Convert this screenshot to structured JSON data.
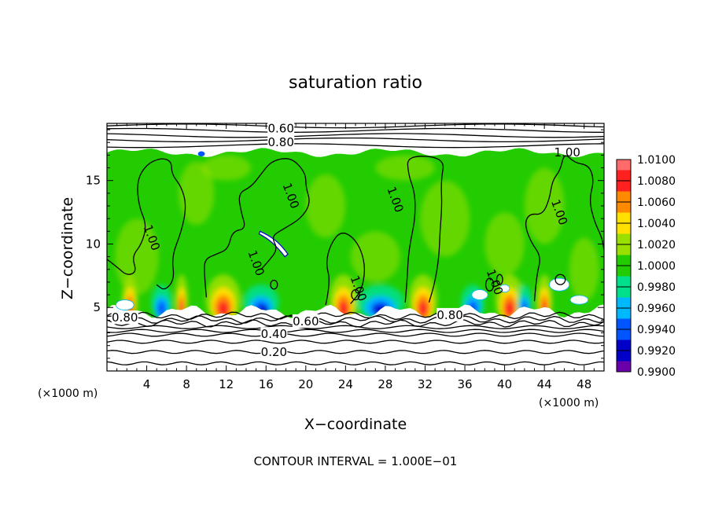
{
  "chart_data": {
    "type": "heatmap",
    "title": "saturation ratio",
    "xlabel": "X−coordinate",
    "ylabel": "Z−coordinate",
    "x_unit": "(×1000 m)",
    "x_unit_right": "(×1000 m)",
    "xlim": [
      0,
      50
    ],
    "ylim": [
      0,
      19.5
    ],
    "x_ticks": [
      4,
      8,
      12,
      16,
      20,
      24,
      28,
      32,
      36,
      40,
      44,
      48
    ],
    "y_ticks": [
      5,
      10,
      15
    ],
    "footer": "CONTOUR INTERVAL = 1.000E−01",
    "colorbar": {
      "placement": "right",
      "levels": [
        "1.0100",
        "1.0080",
        "1.0060",
        "1.0040",
        "1.0020",
        "1.0000",
        "0.9980",
        "0.9960",
        "0.9940",
        "0.9920",
        "0.9900"
      ],
      "colors": [
        "#ff6a6a",
        "#ff2020",
        "#ff8a00",
        "#ffe000",
        "#99e000",
        "#22cc00",
        "#00e08a",
        "#00b8ff",
        "#0055ff",
        "#0000c8",
        "#6a00aa"
      ]
    },
    "contour_labels": [
      {
        "text": "0.60",
        "x": 17.5,
        "y": 19.1
      },
      {
        "text": "0.80",
        "x": 17.5,
        "y": 18.0
      },
      {
        "text": "1.00",
        "x": 46.3,
        "y": 17.2
      },
      {
        "text": "1.00",
        "x": 18.5,
        "y": 13.8
      },
      {
        "text": "1.00",
        "x": 29.0,
        "y": 13.5
      },
      {
        "text": "1.00",
        "x": 4.5,
        "y": 10.5
      },
      {
        "text": "1.00",
        "x": 45.5,
        "y": 12.5
      },
      {
        "text": "1.00",
        "x": 15.0,
        "y": 8.5
      },
      {
        "text": "1.00",
        "x": 25.3,
        "y": 6.5
      },
      {
        "text": "1.00",
        "x": 39.0,
        "y": 7.0
      },
      {
        "text": "0.80",
        "x": 1.8,
        "y": 4.2
      },
      {
        "text": "0.60",
        "x": 20.0,
        "y": 3.9
      },
      {
        "text": "0.80",
        "x": 34.5,
        "y": 4.4
      },
      {
        "text": "0.40",
        "x": 16.8,
        "y": 2.9
      },
      {
        "text": "0.20",
        "x": 16.8,
        "y": 1.5
      }
    ],
    "grid": false
  }
}
